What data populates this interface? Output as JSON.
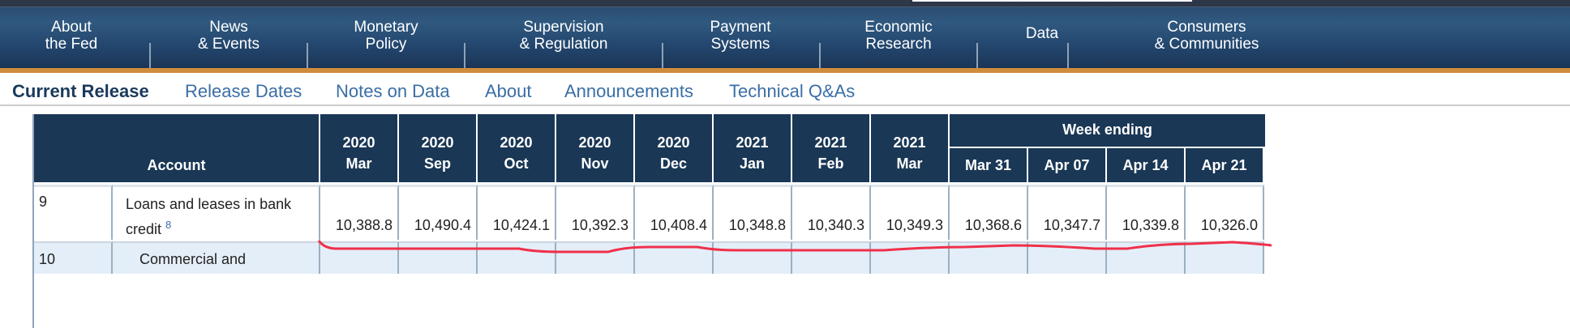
{
  "nav": {
    "items": [
      "About\nthe Fed",
      "News\n& Events",
      "Monetary\nPolicy",
      "Supervision\n& Regulation",
      "Payment\nSystems",
      "Economic\nResearch",
      "Data",
      "Consumers\n& Communities"
    ]
  },
  "subnav": {
    "items": [
      "Current Release",
      "Release Dates",
      "Notes on Data",
      "About",
      "Announcements",
      "Technical Q&As"
    ],
    "active": "Current Release"
  },
  "table": {
    "account_header": "Account",
    "week_ending_header": "Week ending",
    "columns": [
      [
        "2020",
        "Mar"
      ],
      [
        "2020",
        "Sep"
      ],
      [
        "2020",
        "Oct"
      ],
      [
        "2020",
        "Nov"
      ],
      [
        "2020",
        "Dec"
      ],
      [
        "2021",
        "Jan"
      ],
      [
        "2021",
        "Feb"
      ],
      [
        "2021",
        "Mar"
      ],
      [
        "",
        "Mar 31"
      ],
      [
        "",
        "Apr 07"
      ],
      [
        "",
        "Apr 14"
      ],
      [
        "",
        "Apr 21"
      ]
    ],
    "rows": [
      {
        "num": "9",
        "account": "Loans and leases in bank credit",
        "footnote": "8",
        "values": [
          "10,388.8",
          "10,490.4",
          "10,424.1",
          "10,392.3",
          "10,408.4",
          "10,348.8",
          "10,340.3",
          "10,349.3",
          "10,368.6",
          "10,347.7",
          "10,339.8",
          "10,326.0"
        ]
      },
      {
        "num": "10",
        "account": "Commercial and",
        "values": []
      }
    ]
  },
  "colors": {
    "nav": "#2b4d73",
    "accent": "#cf8c3e",
    "header": "#1a3755",
    "link": "#3a6ea5",
    "annotation": "#f0304a"
  }
}
